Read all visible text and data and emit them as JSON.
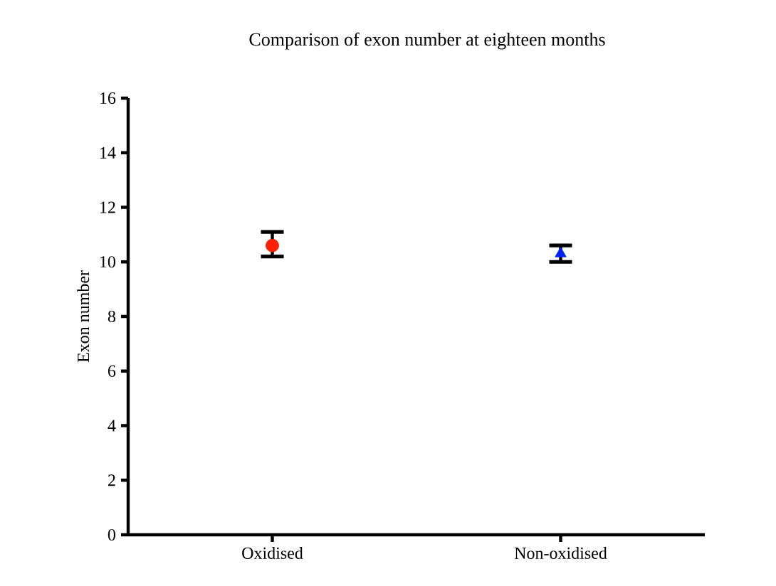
{
  "chart_data": {
    "type": "scatter",
    "title": "Comparison of exon number at eighteen months",
    "ylabel": "Exon number",
    "categories": [
      "Oxidised",
      "Non-oxidised"
    ],
    "series": [
      {
        "color": "#ff2200",
        "marker": "circle",
        "values": [
          10.6,
          null
        ],
        "errors": [
          [
            10.2,
            11.1
          ],
          null
        ]
      },
      {
        "color": "#0022ee",
        "marker": "triangle",
        "values": [
          null,
          10.3
        ],
        "errors": [
          null,
          [
            10.0,
            10.6
          ]
        ]
      }
    ],
    "ylim": [
      0,
      16
    ],
    "yticks": [
      0,
      2,
      4,
      6,
      8,
      10,
      12,
      14,
      16
    ],
    "grid": false
  }
}
